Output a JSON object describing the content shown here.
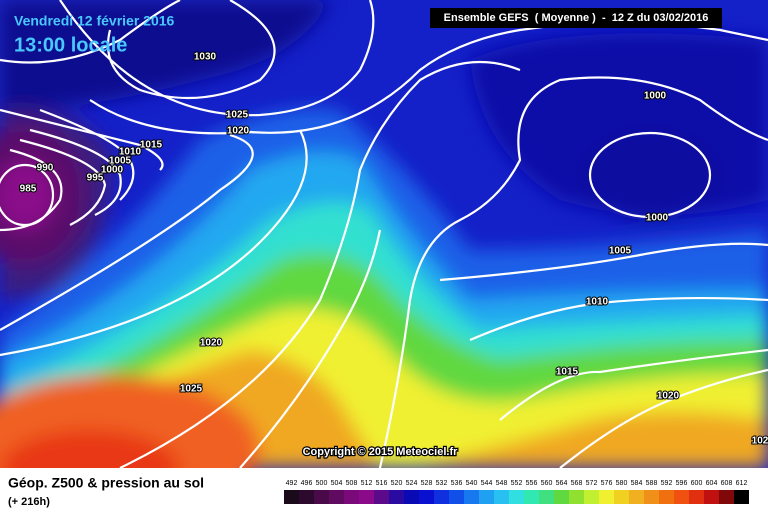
{
  "header": {
    "date": "Vendredi 12 février 2016",
    "time": "13:00 locale",
    "model": "Ensemble GEFS  ( Moyenne )  -  12 Z du 03/02/2016"
  },
  "copyright": "Copyright © 2015 Meteociel.fr",
  "footer": {
    "title": "Géop. Z500 & pression au sol",
    "lead": "(+ 216h)"
  },
  "isobars": [
    {
      "label": "1030"
    },
    {
      "label": "1025"
    },
    {
      "label": "1020"
    },
    {
      "label": "1015"
    },
    {
      "label": "1010"
    },
    {
      "label": "1005"
    },
    {
      "label": "1000"
    },
    {
      "label": "995"
    },
    {
      "label": "990"
    },
    {
      "label": "985"
    },
    {
      "label": "1000"
    },
    {
      "label": "1000"
    },
    {
      "label": "1005"
    },
    {
      "label": "1010"
    },
    {
      "label": "1015"
    },
    {
      "label": "1020"
    },
    {
      "label": "1020"
    },
    {
      "label": "1025"
    },
    {
      "label": "102"
    }
  ],
  "colorbar": {
    "labels": [
      492,
      496,
      500,
      504,
      508,
      512,
      516,
      520,
      524,
      528,
      532,
      536,
      540,
      544,
      548,
      552,
      556,
      560,
      564,
      568,
      572,
      576,
      580,
      584,
      588,
      592,
      596,
      600,
      604,
      608,
      612
    ],
    "colors": [
      "#1a0a1a",
      "#2d0a2d",
      "#4a0a4a",
      "#600a60",
      "#7a0a7a",
      "#8a0a8a",
      "#5a0a8a",
      "#2a0aa0",
      "#0a0ab4",
      "#0a10d0",
      "#1030e0",
      "#1050e8",
      "#1878f0",
      "#20a0f0",
      "#28c0f0",
      "#30e0e0",
      "#30e8b0",
      "#40e080",
      "#60d840",
      "#90e030",
      "#c0f030",
      "#f0f030",
      "#f0d020",
      "#f0b020",
      "#f09018",
      "#f07010",
      "#f05010",
      "#e03010",
      "#c01010",
      "#800808",
      "#000000"
    ]
  }
}
